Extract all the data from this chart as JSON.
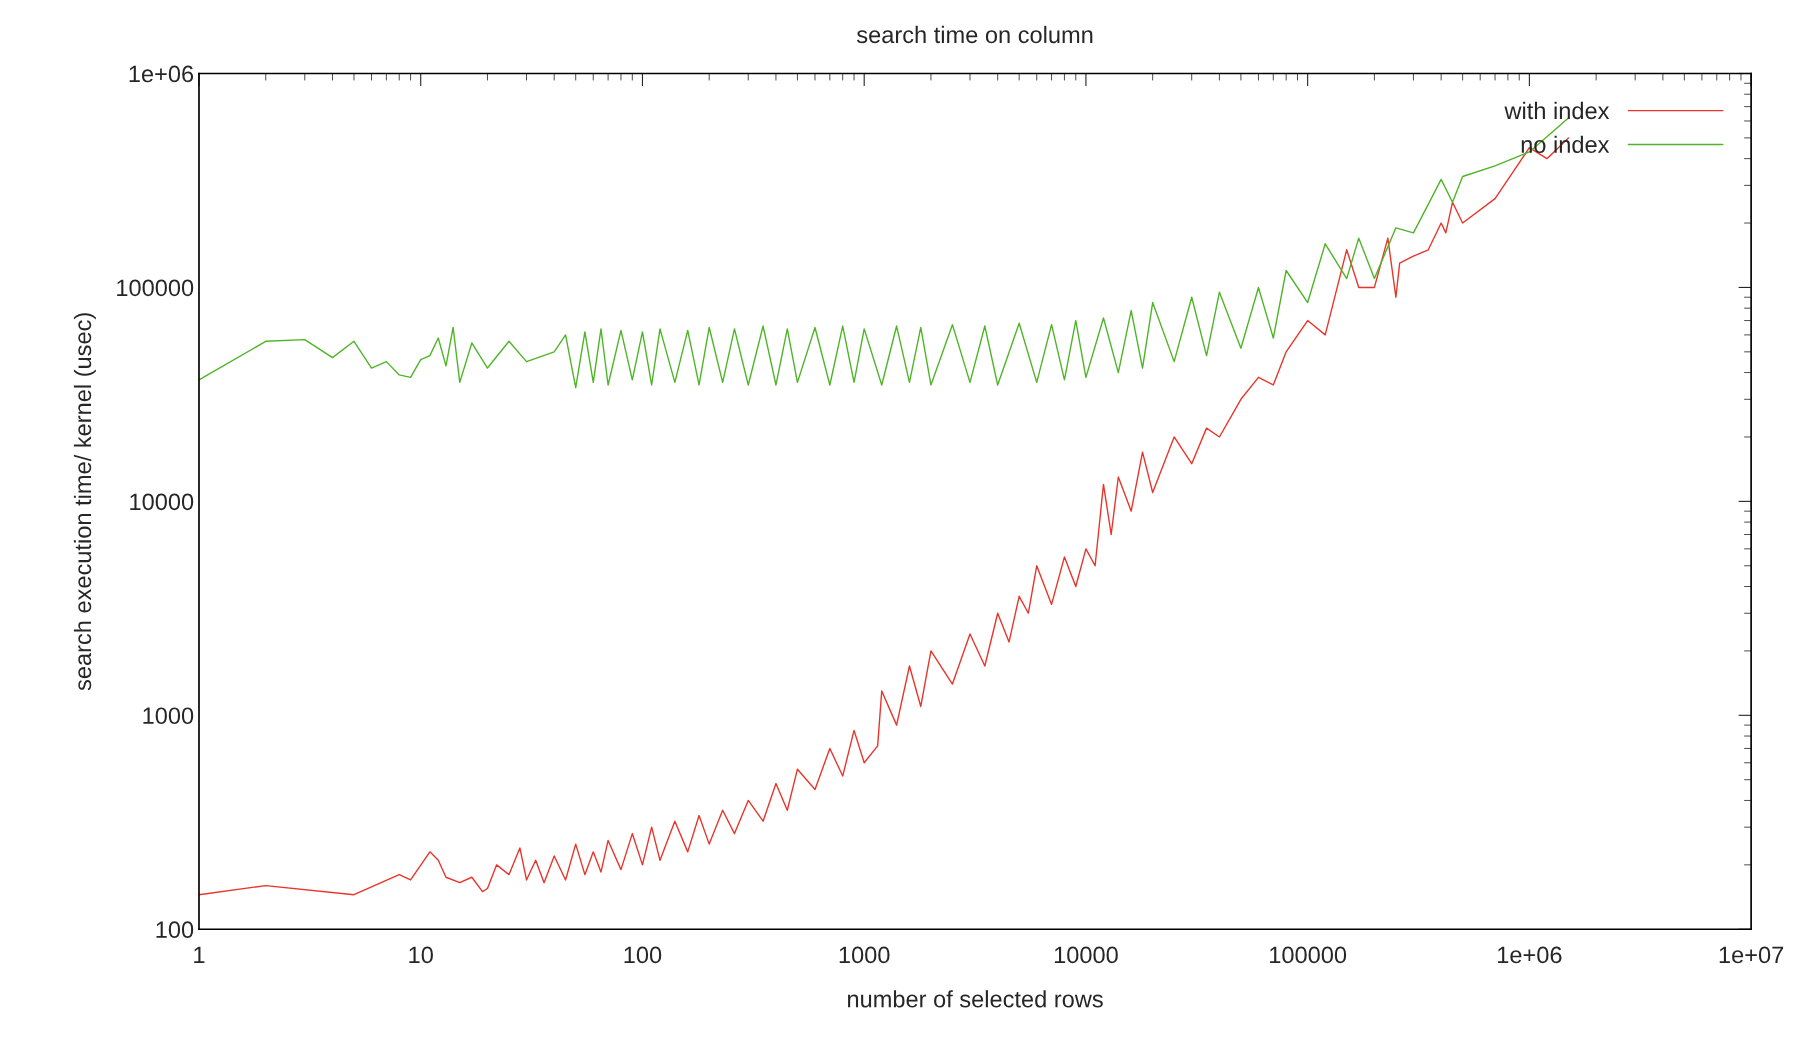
{
  "chart_data": {
    "type": "line",
    "title": "search time on column",
    "xlabel": "number of selected rows",
    "ylabel": "search execution time/ kernel (usec)",
    "log": "xy",
    "grid": false,
    "legend": "top right",
    "line_style": "solid",
    "marker": "none",
    "xlim": [
      1,
      10000000
    ],
    "ylim": [
      100,
      1000000
    ],
    "xticks": [
      1,
      10,
      100,
      1000,
      10000,
      100000,
      {
        "value": 1000000,
        "label": "1e+06"
      },
      {
        "value": 10000000,
        "label": "1e+07"
      }
    ],
    "yticks": [
      100,
      1000,
      10000,
      100000,
      {
        "value": 1000000,
        "label": "1e+06"
      }
    ],
    "series": [
      {
        "name": "with index",
        "color": "#e8352b",
        "x": [
          1,
          2,
          5,
          8,
          9,
          11,
          12,
          13,
          15,
          17,
          19,
          20,
          22,
          25,
          28,
          30,
          33,
          36,
          40,
          45,
          50,
          55,
          60,
          65,
          70,
          80,
          90,
          100,
          110,
          120,
          140,
          160,
          180,
          200,
          230,
          260,
          300,
          350,
          400,
          450,
          500,
          600,
          700,
          800,
          900,
          1000,
          1150,
          1200,
          1400,
          1600,
          1800,
          2000,
          2500,
          3000,
          3500,
          4000,
          4500,
          5000,
          5500,
          6000,
          7000,
          8000,
          9000,
          10000,
          11000,
          12000,
          13000,
          14000,
          16000,
          18000,
          20000,
          25000,
          30000,
          35000,
          40000,
          50000,
          60000,
          70000,
          80000,
          100000,
          120000,
          150000,
          170000,
          200000,
          230000,
          250000,
          260000,
          300000,
          350000,
          400000,
          420000,
          450000,
          500000,
          700000,
          1000000,
          1200000,
          1500000
        ],
        "values": [
          145,
          160,
          145,
          180,
          170,
          230,
          210,
          175,
          165,
          175,
          150,
          155,
          200,
          180,
          240,
          170,
          210,
          165,
          220,
          170,
          250,
          180,
          230,
          185,
          260,
          190,
          280,
          200,
          300,
          210,
          320,
          230,
          340,
          250,
          360,
          280,
          400,
          320,
          480,
          360,
          560,
          450,
          700,
          520,
          850,
          600,
          720,
          1300,
          900,
          1700,
          1100,
          2000,
          1400,
          2400,
          1700,
          3000,
          2200,
          3600,
          3000,
          5000,
          3300,
          5500,
          4000,
          6000,
          5000,
          12000,
          7000,
          13000,
          9000,
          17000,
          11000,
          20000,
          15000,
          22000,
          20000,
          30000,
          38000,
          35000,
          50000,
          70000,
          60000,
          150000,
          100000,
          100000,
          170000,
          90000,
          130000,
          140000,
          150000,
          200000,
          180000,
          250000,
          200000,
          260000,
          450000,
          400000,
          500000
        ]
      },
      {
        "name": "no index",
        "color": "#4eb527",
        "x": [
          1,
          2,
          3,
          4,
          5,
          6,
          7,
          8,
          9,
          10,
          11,
          12,
          13,
          14,
          15,
          17,
          20,
          25,
          30,
          40,
          45,
          50,
          55,
          60,
          65,
          70,
          80,
          90,
          100,
          110,
          120,
          140,
          160,
          180,
          200,
          230,
          260,
          300,
          350,
          400,
          450,
          500,
          600,
          700,
          800,
          900,
          1000,
          1200,
          1400,
          1600,
          1800,
          2000,
          2500,
          3000,
          3500,
          4000,
          5000,
          6000,
          7000,
          8000,
          9000,
          10000,
          12000,
          14000,
          16000,
          18000,
          20000,
          25000,
          30000,
          35000,
          40000,
          50000,
          60000,
          70000,
          80000,
          100000,
          120000,
          150000,
          170000,
          200000,
          250000,
          300000,
          400000,
          450000,
          500000,
          700000,
          1000000,
          1500000
        ],
        "values": [
          37000,
          56000,
          57000,
          47000,
          56000,
          42000,
          45000,
          39000,
          38000,
          46000,
          48000,
          58000,
          43000,
          65000,
          36000,
          55000,
          42000,
          56000,
          45000,
          50000,
          60000,
          34000,
          62000,
          36000,
          64000,
          35000,
          63000,
          37000,
          62000,
          35000,
          64000,
          36000,
          63000,
          35000,
          65000,
          36000,
          64000,
          35000,
          66000,
          35000,
          64000,
          36000,
          65000,
          35000,
          66000,
          36000,
          64000,
          35000,
          66000,
          36000,
          65000,
          35000,
          67000,
          36000,
          66000,
          35000,
          68000,
          36000,
          67000,
          37000,
          70000,
          38000,
          72000,
          40000,
          78000,
          42000,
          85000,
          45000,
          90000,
          48000,
          95000,
          52000,
          100000,
          58000,
          120000,
          85000,
          160000,
          110000,
          170000,
          110000,
          190000,
          180000,
          320000,
          250000,
          330000,
          370000,
          430000,
          620000
        ]
      }
    ]
  }
}
